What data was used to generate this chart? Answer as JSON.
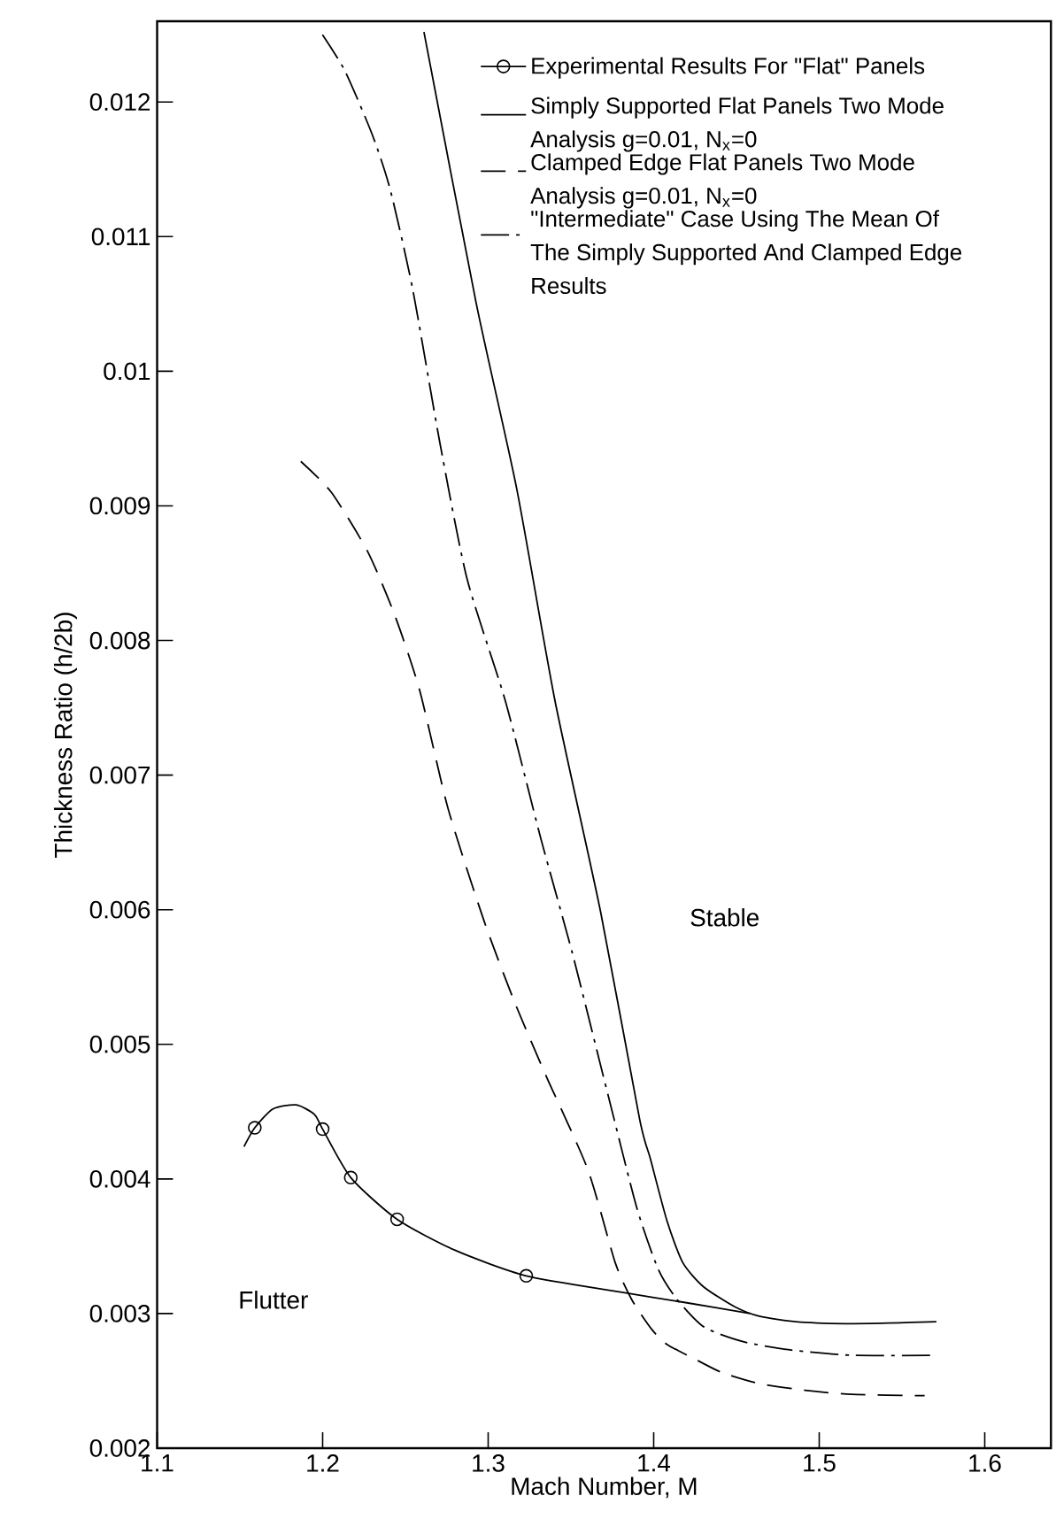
{
  "chart_data": {
    "type": "line",
    "xlabel": "Mach Number, M",
    "ylabel": "Thickness Ratio  (h/2b)",
    "xlim": [
      1.1,
      1.64
    ],
    "ylim": [
      0.002,
      0.0126
    ],
    "xticks": [
      1.1,
      1.2,
      1.3,
      1.4,
      1.5,
      1.6
    ],
    "yticks": [
      0.002,
      0.003,
      0.004,
      0.005,
      0.006,
      0.007,
      0.008,
      0.009,
      0.01,
      0.011,
      0.012
    ],
    "grid": false,
    "legend": "top right",
    "series": [
      {
        "name": "Experimental Results For \"Flat\" Panels",
        "type": "scatter",
        "marker": "circle",
        "color": "#000000",
        "x": [
          1.159,
          1.2,
          1.217,
          1.245,
          1.323
        ],
        "values": [
          0.00438,
          0.00437,
          0.00401,
          0.0037,
          0.00328
        ]
      },
      {
        "marker": "none",
        "line_style": "solid",
        "color": "#000000",
        "x": [
          1.1525,
          1.159,
          1.17,
          1.184,
          1.195,
          1.2,
          1.217,
          1.245,
          1.28,
          1.323,
          1.38,
          1.42,
          1.4583
        ],
        "values": [
          0.00424,
          0.00438,
          0.00452,
          0.00455,
          0.00448,
          0.00437,
          0.00401,
          0.0037,
          0.00347,
          0.00328,
          0.00316,
          0.00308,
          0.003
        ]
      },
      {
        "name": "Simply Supported Flat Panels Two Mode Analysis g=0.01, N$_{x}$=0",
        "marker": "none",
        "line_style": "solid",
        "color": "#000000",
        "x": [
          1.2612,
          1.2927,
          1.3172,
          1.3404,
          1.368,
          1.3914,
          1.398,
          1.408,
          1.4175,
          1.43,
          1.449,
          1.4638,
          1.486,
          1.5156,
          1.5415,
          1.5708
        ],
        "values": [
          0.01252,
          0.01051,
          0.00913,
          0.00755,
          0.00598,
          0.00445,
          0.00415,
          0.00369,
          0.00338,
          0.0032,
          0.00305,
          0.00298,
          0.00294,
          0.002925,
          0.002929,
          0.00294
        ]
      },
      {
        "name": "Clamped Edge Flat Panels Two Mode Analysis g=0.01, N$_{x}$=0",
        "marker": "none",
        "line_style": "dashed",
        "color": "#000000",
        "x": [
          1.1868,
          1.2053,
          1.2272,
          1.2435,
          1.2586,
          1.2758,
          1.2977,
          1.3164,
          1.3352,
          1.3602,
          1.3767,
          1.3869,
          1.399,
          1.4082,
          1.4267,
          1.4416,
          1.4638,
          1.4915,
          1.5193,
          1.5637
        ],
        "values": [
          0.00933,
          0.0091,
          0.00866,
          0.00819,
          0.00763,
          0.00675,
          0.00591,
          0.0053,
          0.00476,
          0.00407,
          0.00338,
          0.0031,
          0.00288,
          0.00277,
          0.00265,
          0.00256,
          0.00248,
          0.00243,
          0.0024,
          0.00239
        ]
      },
      {
        "name": "\"Intermediate\" Case Using The Mean Of The Simply Supported And Clamped Edge Results",
        "marker": "none",
        "line_style": "dashdot",
        "color": "#000000",
        "x": [
          1.1999,
          1.2135,
          1.2299,
          1.2408,
          1.2544,
          1.2708,
          1.2872,
          1.3104,
          1.332,
          1.3508,
          1.3727,
          1.3897,
          1.4027,
          1.4138,
          1.4304,
          1.4545,
          1.4823,
          1.5193,
          1.5693
        ],
        "values": [
          0.0125,
          0.01223,
          0.01176,
          0.01135,
          0.01061,
          0.00947,
          0.00846,
          0.00755,
          0.00652,
          0.00568,
          0.00461,
          0.00379,
          0.00333,
          0.00311,
          0.0029,
          0.00279,
          0.00273,
          0.00269,
          0.00269
        ]
      }
    ],
    "annotations": [
      "Stable",
      "Flutter"
    ]
  }
}
